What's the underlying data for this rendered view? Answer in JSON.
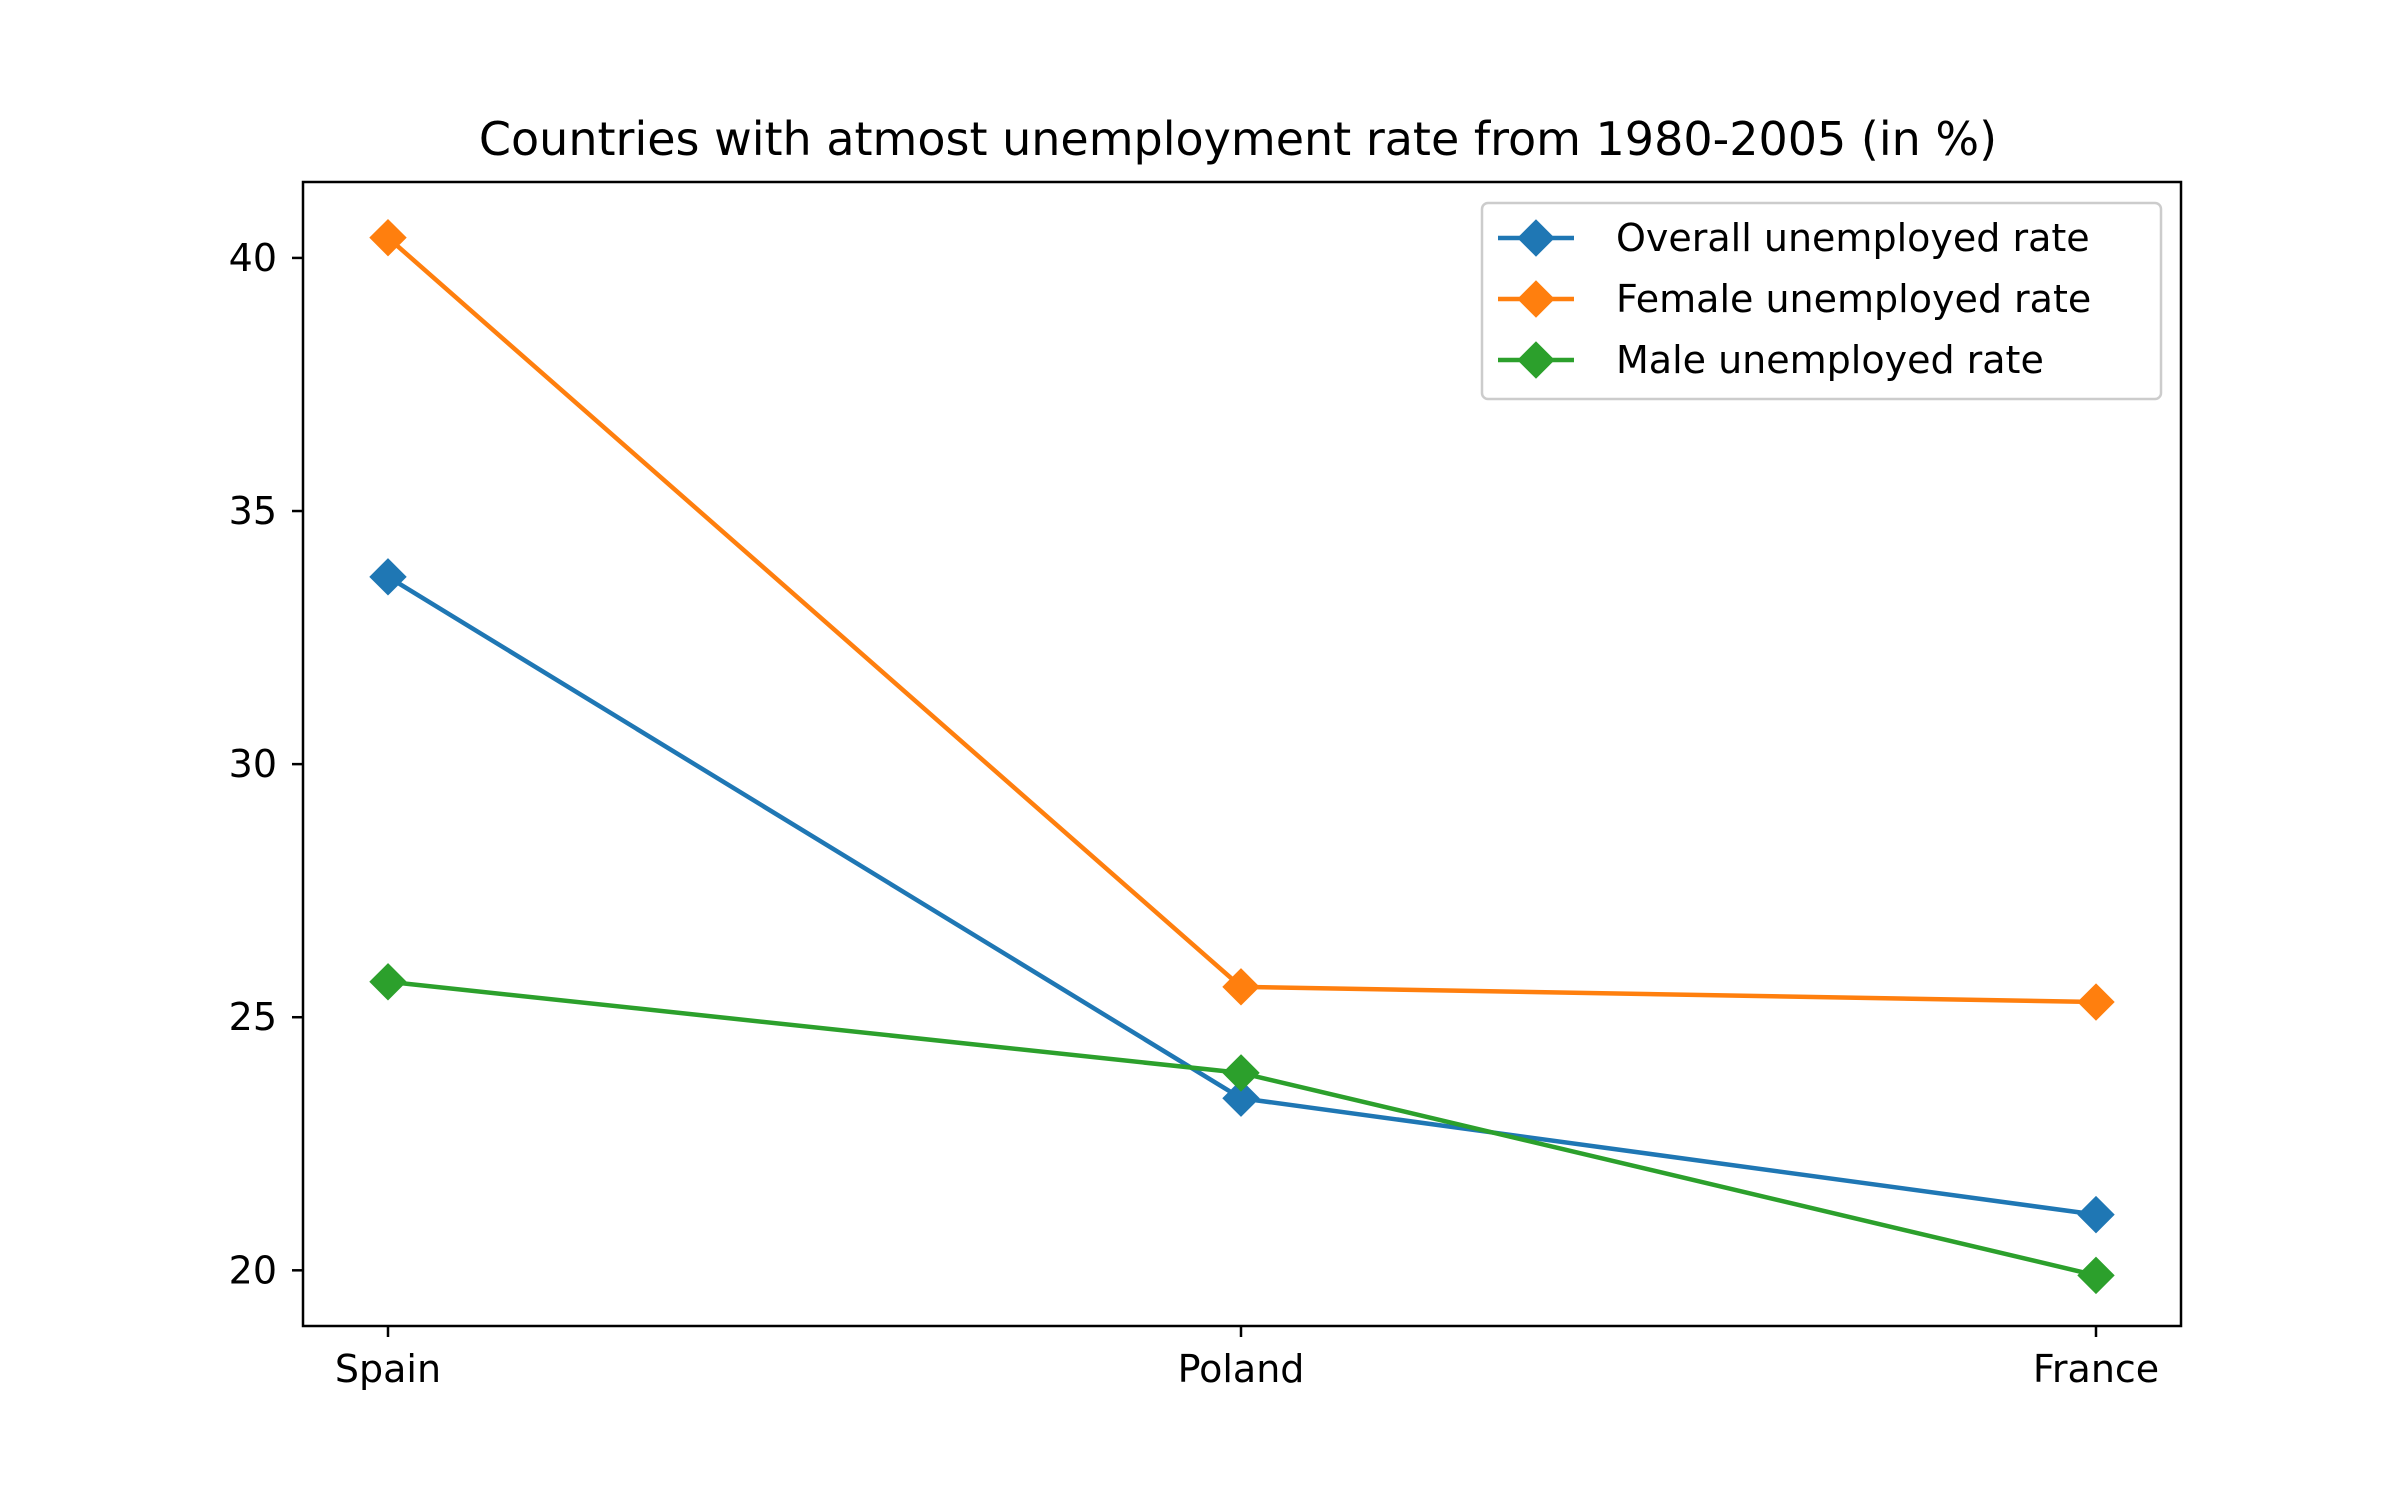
{
  "chart_data": {
    "type": "line",
    "title": "Countries with atmost unemployment rate from 1980-2005 (in %)",
    "xlabel": "",
    "ylabel": "",
    "categories": [
      "Spain",
      "Poland",
      "France"
    ],
    "ylim": [
      18.9,
      41.5
    ],
    "yticks": [
      20,
      25,
      30,
      35,
      40
    ],
    "grid": false,
    "legend_position": "top-right",
    "marker": "diamond",
    "series": [
      {
        "name": "Overall unemployed rate",
        "color": "#1f77b4",
        "values": [
          33.7,
          23.4,
          21.1
        ]
      },
      {
        "name": "Female unemployed rate",
        "color": "#ff7f0e",
        "values": [
          40.4,
          25.6,
          25.3
        ]
      },
      {
        "name": "Male unemployed rate",
        "color": "#2ca02c",
        "values": [
          25.7,
          23.9,
          19.9
        ]
      }
    ]
  }
}
